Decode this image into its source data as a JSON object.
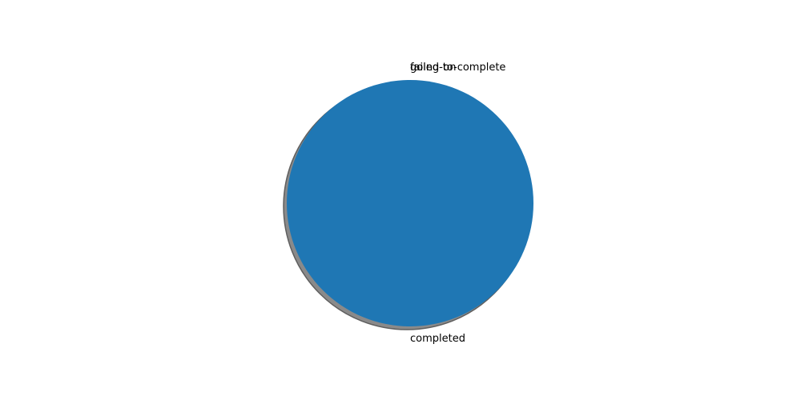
{
  "chart_data": {
    "type": "pie",
    "title": "",
    "labels": [
      "completed",
      "failed-to-complete",
      "going-on"
    ],
    "values": [
      100,
      0,
      0
    ],
    "colors": [
      "#1f77b4",
      "#ff7f0e",
      "#2ca02c"
    ],
    "shadow": true,
    "legend": "none",
    "start_angle_deg": 90,
    "counterclockwise": true
  }
}
